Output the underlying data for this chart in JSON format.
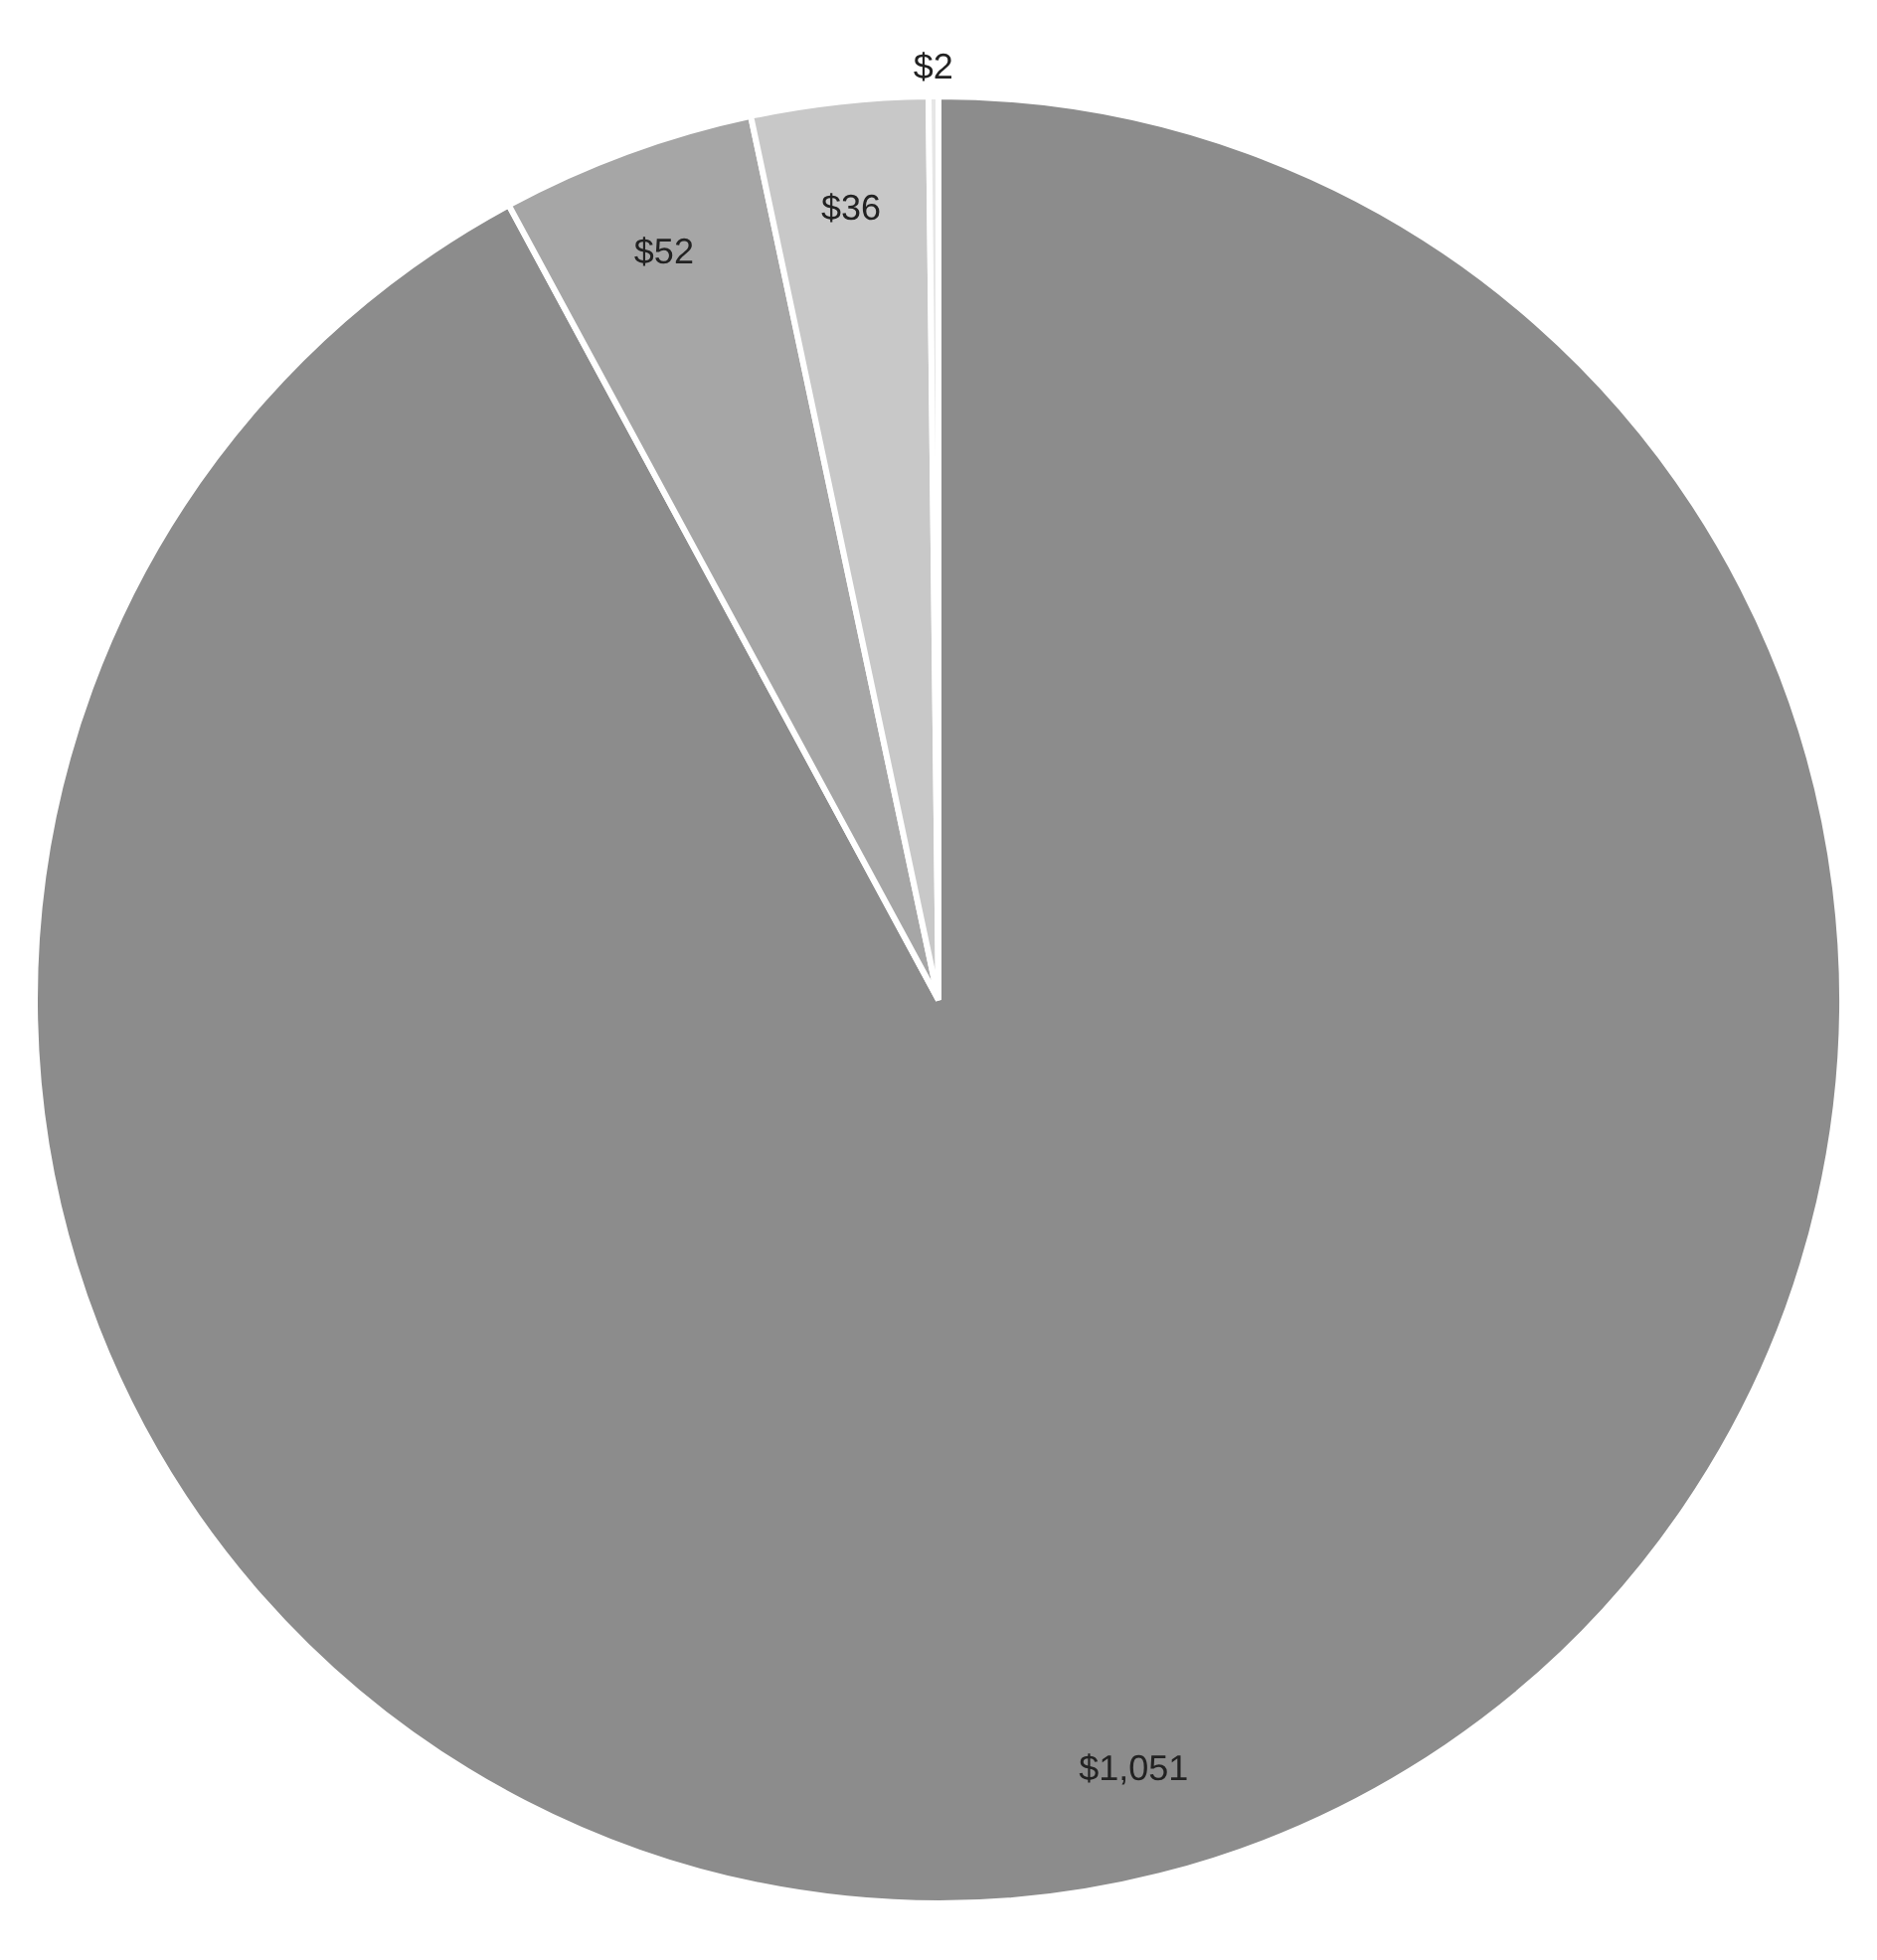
{
  "chart_data": {
    "type": "pie",
    "categories": [
      null,
      null,
      null,
      null
    ],
    "values": [
      1051,
      52,
      36,
      2
    ],
    "colors": [
      "#8c8c8c",
      "#a6a6a6",
      "#c8c8c8",
      "#e6e6e6"
    ],
    "value_labels": [
      "$1,051",
      "$52",
      "$36",
      "$2"
    ],
    "legend": false
  }
}
